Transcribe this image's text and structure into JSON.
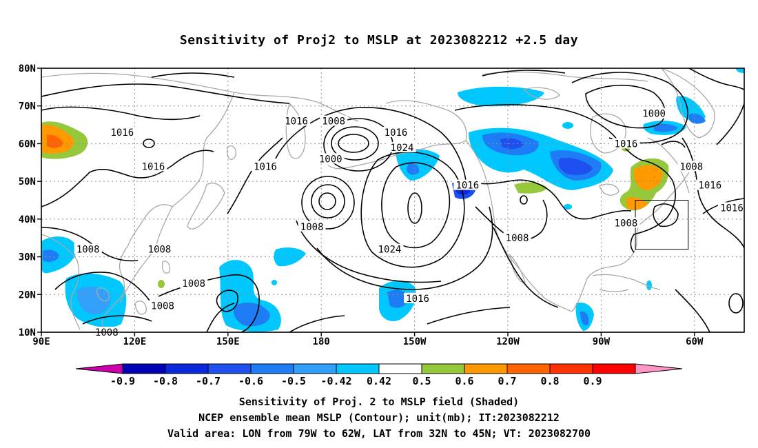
{
  "title": "Sensitivity of Proj2 to MSLP at 2023082212 +2.5 day",
  "lat_labels": [
    "80N",
    "70N",
    "60N",
    "50N",
    "40N",
    "30N",
    "20N",
    "10N"
  ],
  "lon_labels": [
    "90E",
    "120E",
    "150E",
    "180",
    "150W",
    "120W",
    "90W",
    "60W"
  ],
  "lon_values": [
    90,
    120,
    150,
    180,
    210,
    240,
    270,
    300
  ],
  "lat_values": [
    80,
    70,
    60,
    50,
    40,
    30,
    20,
    10
  ],
  "map_extent": {
    "lon_min": 90,
    "lon_max": 316,
    "lat_min": 10,
    "lat_max": 80
  },
  "colorbar": {
    "labels": [
      "-0.9",
      "-0.8",
      "-0.7",
      "-0.6",
      "-0.5",
      "-0.42",
      "0.42",
      "0.5",
      "0.6",
      "0.7",
      "0.8",
      "0.9"
    ],
    "colors": [
      "#cc00aa",
      "#0000b4",
      "#0a28dc",
      "#1e50f0",
      "#1e7cf5",
      "#32a0fa",
      "#00c8ff",
      "#ffffff",
      "#96c83c",
      "#ff9900",
      "#ff6400",
      "#ff3200",
      "#ff0000",
      "#ff96c8"
    ]
  },
  "contour_labels": [
    {
      "text": "1016",
      "lon": 116,
      "lat": 63
    },
    {
      "text": "1016",
      "lon": 126,
      "lat": 54
    },
    {
      "text": "1016",
      "lon": 162,
      "lat": 54
    },
    {
      "text": "1016",
      "lon": 172,
      "lat": 66
    },
    {
      "text": "1008",
      "lon": 184,
      "lat": 66
    },
    {
      "text": "1000",
      "lon": 183,
      "lat": 56
    },
    {
      "text": "1016",
      "lon": 204,
      "lat": 63
    },
    {
      "text": "1024",
      "lon": 206,
      "lat": 59
    },
    {
      "text": "1008",
      "lon": 177,
      "lat": 38
    },
    {
      "text": "1024",
      "lon": 202,
      "lat": 32
    },
    {
      "text": "1016",
      "lon": 211,
      "lat": 19
    },
    {
      "text": "1008",
      "lon": 105,
      "lat": 32
    },
    {
      "text": "1008",
      "lon": 128,
      "lat": 32
    },
    {
      "text": "1008",
      "lon": 139,
      "lat": 23
    },
    {
      "text": "1008",
      "lon": 129,
      "lat": 17
    },
    {
      "text": "1008",
      "lon": 111,
      "lat": 10
    },
    {
      "text": "1016",
      "lon": 227,
      "lat": 49
    },
    {
      "text": "1008",
      "lon": 243,
      "lat": 35
    },
    {
      "text": "1000",
      "lon": 287,
      "lat": 68
    },
    {
      "text": "1016",
      "lon": 278,
      "lat": 60
    },
    {
      "text": "1008",
      "lon": 299,
      "lat": 54
    },
    {
      "text": "1016",
      "lon": 305,
      "lat": 49
    },
    {
      "text": "1016",
      "lon": 312,
      "lat": 43
    },
    {
      "text": "1008",
      "lon": 278,
      "lat": 39
    }
  ],
  "valid_area": {
    "lon_min": -79,
    "lon_max": -62,
    "lat_min": 32,
    "lat_max": 45
  },
  "captions": {
    "line1": "Sensitivity of Proj. 2 to MSLP field (Shaded)",
    "line2": "NCEP ensemble mean MSLP (Contour); unit(mb); IT:2023082212",
    "line3": "Valid area: LON from 79W to 62W, LAT from 32N to 45N; VT: 2023082700"
  }
}
